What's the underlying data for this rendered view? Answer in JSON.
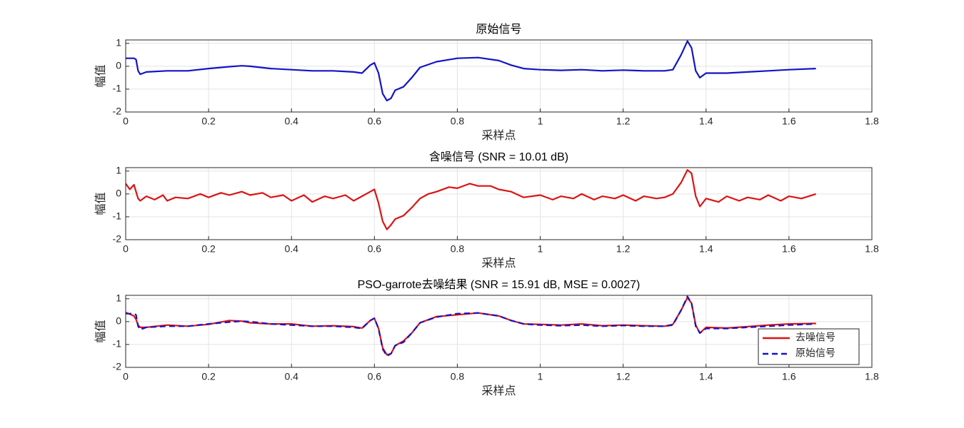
{
  "chart_data": [
    {
      "type": "line",
      "title": "原始信号",
      "xlabel": "采样点",
      "ylabel": "幅值",
      "x": [
        0,
        0.02,
        0.025,
        0.03,
        0.035,
        0.05,
        0.1,
        0.15,
        0.2,
        0.25,
        0.28,
        0.3,
        0.35,
        0.4,
        0.45,
        0.5,
        0.55,
        0.57,
        0.59,
        0.6,
        0.61,
        0.62,
        0.63,
        0.64,
        0.65,
        0.67,
        0.69,
        0.71,
        0.75,
        0.8,
        0.85,
        0.9,
        0.93,
        0.96,
        1.0,
        1.05,
        1.1,
        1.15,
        1.2,
        1.25,
        1.3,
        1.32,
        1.34,
        1.355,
        1.365,
        1.375,
        1.385,
        1.4,
        1.45,
        1.5,
        1.55,
        1.6,
        1.665
      ],
      "series": [
        {
          "name": "原始信号",
          "color": "#1414c8",
          "style": "solid",
          "values": [
            0.35,
            0.35,
            0.3,
            -0.2,
            -0.35,
            -0.25,
            -0.2,
            -0.2,
            -0.1,
            -0.02,
            0.02,
            0,
            -0.1,
            -0.15,
            -0.2,
            -0.2,
            -0.25,
            -0.3,
            0.05,
            0.15,
            -0.3,
            -1.2,
            -1.5,
            -1.4,
            -1.05,
            -0.9,
            -0.5,
            -0.05,
            0.2,
            0.35,
            0.38,
            0.25,
            0.05,
            -0.1,
            -0.15,
            -0.18,
            -0.15,
            -0.2,
            -0.17,
            -0.2,
            -0.2,
            -0.15,
            0.5,
            1.1,
            0.8,
            -0.2,
            -0.5,
            -0.3,
            -0.3,
            -0.25,
            -0.2,
            -0.15,
            -0.1
          ]
        }
      ],
      "xlim": [
        0,
        1.8
      ],
      "ylim": [
        -2,
        1.15
      ],
      "xticks": [
        0,
        0.2,
        0.4,
        0.6,
        0.8,
        1,
        1.2,
        1.4,
        1.6,
        1.8
      ],
      "yticks": [
        -2,
        -1,
        0,
        1
      ],
      "grid": true
    },
    {
      "type": "line",
      "title": "含噪信号 (SNR = 10.01 dB)",
      "xlabel": "采样点",
      "ylabel": "幅值",
      "x": [
        0,
        0.01,
        0.02,
        0.025,
        0.03,
        0.035,
        0.05,
        0.07,
        0.09,
        0.1,
        0.12,
        0.15,
        0.18,
        0.2,
        0.23,
        0.25,
        0.28,
        0.3,
        0.33,
        0.35,
        0.38,
        0.4,
        0.43,
        0.45,
        0.48,
        0.5,
        0.53,
        0.55,
        0.57,
        0.59,
        0.6,
        0.61,
        0.62,
        0.63,
        0.64,
        0.65,
        0.67,
        0.69,
        0.71,
        0.73,
        0.75,
        0.78,
        0.8,
        0.83,
        0.85,
        0.88,
        0.9,
        0.93,
        0.96,
        1.0,
        1.03,
        1.05,
        1.08,
        1.1,
        1.13,
        1.15,
        1.18,
        1.2,
        1.23,
        1.25,
        1.28,
        1.3,
        1.32,
        1.34,
        1.355,
        1.365,
        1.375,
        1.385,
        1.4,
        1.43,
        1.45,
        1.48,
        1.5,
        1.53,
        1.55,
        1.58,
        1.6,
        1.63,
        1.665
      ],
      "series": [
        {
          "name": "含噪信号",
          "color": "#dc1414",
          "style": "solid",
          "values": [
            0.45,
            0.2,
            0.4,
            0.1,
            -0.2,
            -0.3,
            -0.1,
            -0.25,
            -0.05,
            -0.3,
            -0.15,
            -0.2,
            0,
            -0.15,
            0.05,
            -0.05,
            0.1,
            -0.05,
            0.05,
            -0.15,
            -0.05,
            -0.3,
            -0.05,
            -0.35,
            -0.1,
            -0.2,
            -0.05,
            -0.3,
            -0.1,
            0.1,
            0.2,
            -0.4,
            -1.2,
            -1.55,
            -1.35,
            -1.1,
            -0.95,
            -0.6,
            -0.2,
            0,
            0.1,
            0.3,
            0.25,
            0.45,
            0.35,
            0.35,
            0.2,
            0.1,
            -0.15,
            -0.05,
            -0.25,
            -0.1,
            -0.2,
            0,
            -0.25,
            -0.1,
            -0.2,
            -0.05,
            -0.3,
            -0.1,
            -0.2,
            -0.15,
            0,
            0.5,
            1.05,
            0.9,
            -0.1,
            -0.55,
            -0.2,
            -0.35,
            -0.1,
            -0.3,
            -0.15,
            -0.25,
            -0.05,
            -0.3,
            -0.1,
            -0.2,
            0
          ]
        }
      ],
      "xlim": [
        0,
        1.8
      ],
      "ylim": [
        -2,
        1.15
      ],
      "xticks": [
        0,
        0.2,
        0.4,
        0.6,
        0.8,
        1,
        1.2,
        1.4,
        1.6,
        1.8
      ],
      "yticks": [
        -2,
        -1,
        0,
        1
      ],
      "grid": true
    },
    {
      "type": "line",
      "title": "PSO-garrote去噪结果 (SNR = 15.91 dB, MSE = 0.0027)",
      "xlabel": "采样点",
      "ylabel": "幅值",
      "x": [
        0,
        0.02,
        0.025,
        0.03,
        0.035,
        0.05,
        0.1,
        0.15,
        0.2,
        0.25,
        0.28,
        0.3,
        0.35,
        0.4,
        0.45,
        0.5,
        0.55,
        0.57,
        0.59,
        0.6,
        0.61,
        0.62,
        0.63,
        0.64,
        0.65,
        0.67,
        0.69,
        0.71,
        0.75,
        0.8,
        0.85,
        0.9,
        0.93,
        0.96,
        1.0,
        1.05,
        1.1,
        1.15,
        1.2,
        1.25,
        1.3,
        1.32,
        1.34,
        1.355,
        1.365,
        1.375,
        1.385,
        1.4,
        1.45,
        1.5,
        1.55,
        1.6,
        1.665
      ],
      "series": [
        {
          "name": "去噪信号",
          "color": "#dc1414",
          "style": "solid",
          "values": [
            0.4,
            0.25,
            0.1,
            -0.15,
            -0.25,
            -0.25,
            -0.15,
            -0.2,
            -0.12,
            0.05,
            0.02,
            -0.05,
            -0.1,
            -0.1,
            -0.2,
            -0.18,
            -0.22,
            -0.28,
            0.05,
            0.15,
            -0.3,
            -1.15,
            -1.45,
            -1.4,
            -1.05,
            -0.85,
            -0.5,
            -0.05,
            0.22,
            0.3,
            0.38,
            0.25,
            0.05,
            -0.1,
            -0.12,
            -0.15,
            -0.1,
            -0.18,
            -0.15,
            -0.18,
            -0.2,
            -0.12,
            0.5,
            1.05,
            0.8,
            -0.15,
            -0.5,
            -0.25,
            -0.28,
            -0.22,
            -0.15,
            -0.1,
            -0.08
          ]
        },
        {
          "name": "原始信号",
          "color": "#1414c8",
          "style": "dashed",
          "values": [
            0.35,
            0.35,
            0.3,
            -0.2,
            -0.35,
            -0.25,
            -0.2,
            -0.2,
            -0.1,
            -0.02,
            0.02,
            0,
            -0.1,
            -0.15,
            -0.2,
            -0.2,
            -0.25,
            -0.3,
            0.05,
            0.15,
            -0.3,
            -1.2,
            -1.5,
            -1.4,
            -1.05,
            -0.9,
            -0.5,
            -0.05,
            0.2,
            0.35,
            0.38,
            0.25,
            0.05,
            -0.1,
            -0.15,
            -0.18,
            -0.15,
            -0.2,
            -0.17,
            -0.2,
            -0.2,
            -0.15,
            0.5,
            1.1,
            0.8,
            -0.2,
            -0.5,
            -0.3,
            -0.3,
            -0.25,
            -0.2,
            -0.15,
            -0.1
          ]
        }
      ],
      "xlim": [
        0,
        1.8
      ],
      "ylim": [
        -2,
        1.15
      ],
      "xticks": [
        0,
        0.2,
        0.4,
        0.6,
        0.8,
        1,
        1.2,
        1.4,
        1.6,
        1.8
      ],
      "yticks": [
        -2,
        -1,
        0,
        1
      ],
      "grid": true,
      "legend": "lower right"
    }
  ]
}
